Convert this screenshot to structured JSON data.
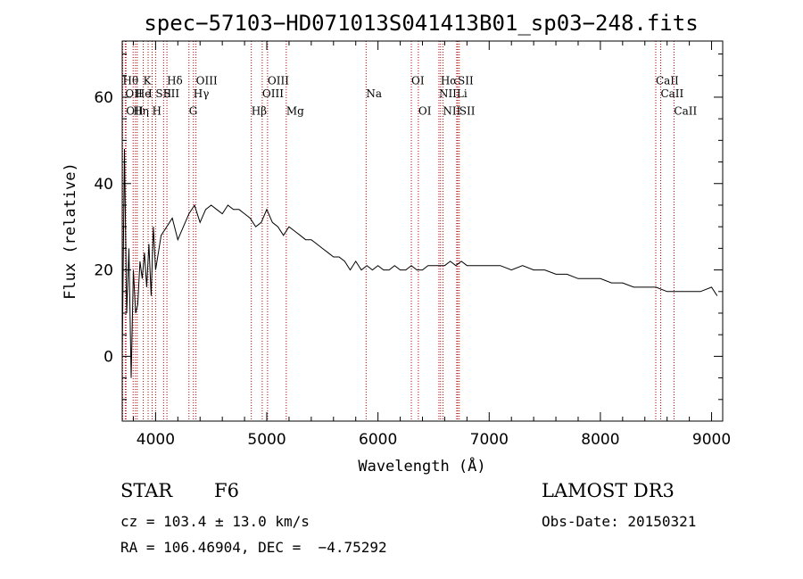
{
  "chart_data": {
    "type": "line",
    "title": "spec−57103−HD071013S041413B01_sp03−248.fits",
    "xlabel": "Wavelength (Å)",
    "ylabel": "Flux (relative)",
    "xlim": [
      3700,
      9100
    ],
    "ylim": [
      -15,
      73
    ],
    "x_ticks": [
      4000,
      5000,
      6000,
      7000,
      8000,
      9000
    ],
    "y_ticks": [
      0,
      20,
      40,
      60
    ],
    "series": [
      {
        "name": "spectrum",
        "x": [
          3700,
          3720,
          3740,
          3760,
          3780,
          3800,
          3820,
          3840,
          3860,
          3880,
          3900,
          3920,
          3940,
          3960,
          3980,
          4000,
          4050,
          4100,
          4150,
          4200,
          4250,
          4300,
          4350,
          4400,
          4450,
          4500,
          4550,
          4600,
          4650,
          4700,
          4750,
          4800,
          4850,
          4900,
          4950,
          5000,
          5050,
          5100,
          5150,
          5200,
          5250,
          5300,
          5350,
          5400,
          5450,
          5500,
          5550,
          5600,
          5650,
          5700,
          5750,
          5800,
          5850,
          5900,
          5950,
          6000,
          6050,
          6100,
          6150,
          6200,
          6250,
          6300,
          6350,
          6400,
          6450,
          6500,
          6550,
          6600,
          6650,
          6700,
          6750,
          6800,
          6850,
          6900,
          6950,
          7000,
          7100,
          7200,
          7300,
          7400,
          7500,
          7600,
          7700,
          7800,
          7900,
          8000,
          8100,
          8200,
          8300,
          8400,
          8500,
          8600,
          8700,
          8800,
          8900,
          9000,
          9050
        ],
        "y": [
          0,
          48,
          10,
          25,
          -5,
          20,
          10,
          12,
          22,
          18,
          24,
          16,
          26,
          14,
          30,
          20,
          28,
          30,
          32,
          27,
          30,
          33,
          35,
          31,
          34,
          35,
          34,
          33,
          35,
          34,
          34,
          33,
          32,
          30,
          31,
          34,
          31,
          30,
          28,
          30,
          29,
          28,
          27,
          27,
          26,
          25,
          24,
          23,
          23,
          22,
          20,
          22,
          20,
          21,
          20,
          21,
          20,
          20,
          21,
          20,
          20,
          21,
          20,
          20,
          21,
          21,
          21,
          21,
          22,
          21,
          22,
          21,
          21,
          21,
          21,
          21,
          21,
          20,
          21,
          20,
          20,
          19,
          19,
          18,
          18,
          18,
          17,
          17,
          16,
          16,
          16,
          15,
          15,
          15,
          15,
          16,
          14
        ]
      }
    ],
    "annotations": [
      {
        "x": 3704,
        "y": 63,
        "text": "Hθ"
      },
      {
        "x": 3727,
        "y": 60,
        "text": "OII"
      },
      {
        "x": 3734,
        "y": 56,
        "text": "OII"
      },
      {
        "x": 3798,
        "y": 56,
        "text": "Hη"
      },
      {
        "x": 3819,
        "y": 60,
        "text": "He"
      },
      {
        "x": 3889,
        "y": 63,
        "text": "K"
      },
      {
        "x": 3933,
        "y": 60,
        "text": "I"
      },
      {
        "x": 3969,
        "y": 56,
        "text": "H"
      },
      {
        "x": 4000,
        "y": 60,
        "text": "SII"
      },
      {
        "x": 4102,
        "y": 63,
        "text": "Hδ"
      },
      {
        "x": 4072,
        "y": 60,
        "text": "SII"
      },
      {
        "x": 4300,
        "y": 56,
        "text": "G"
      },
      {
        "x": 4340,
        "y": 60,
        "text": "Hγ"
      },
      {
        "x": 4363,
        "y": 63,
        "text": "OIII"
      },
      {
        "x": 4861,
        "y": 56,
        "text": "Hβ"
      },
      {
        "x": 4959,
        "y": 60,
        "text": "OIII"
      },
      {
        "x": 5007,
        "y": 63,
        "text": "OIII"
      },
      {
        "x": 5175,
        "y": 56,
        "text": "Mg"
      },
      {
        "x": 5893,
        "y": 60,
        "text": "Na"
      },
      {
        "x": 6300,
        "y": 63,
        "text": "OI"
      },
      {
        "x": 6363,
        "y": 56,
        "text": "OI"
      },
      {
        "x": 6548,
        "y": 60,
        "text": "NII"
      },
      {
        "x": 6563,
        "y": 63,
        "text": "Hα"
      },
      {
        "x": 6584,
        "y": 56,
        "text": "NII"
      },
      {
        "x": 6708,
        "y": 60,
        "text": "Li"
      },
      {
        "x": 6717,
        "y": 63,
        "text": "SII"
      },
      {
        "x": 6731,
        "y": 56,
        "text": "SII"
      },
      {
        "x": 8498,
        "y": 63,
        "text": "CaII"
      },
      {
        "x": 8542,
        "y": 60,
        "text": "CaII"
      },
      {
        "x": 8662,
        "y": 56,
        "text": "CaII"
      }
    ],
    "line_markers": [
      3704,
      3727,
      3734,
      3798,
      3819,
      3835,
      3889,
      3933,
      3969,
      4000,
      4072,
      4102,
      4300,
      4340,
      4363,
      4861,
      4959,
      5007,
      5175,
      5893,
      6300,
      6363,
      6548,
      6563,
      6584,
      6708,
      6717,
      6731,
      8498,
      8542,
      8662
    ]
  },
  "info": {
    "object_type": "STAR",
    "subclass": "F6",
    "survey": "LAMOST DR3",
    "cz": "cz = 103.4 ± 13.0 km/s",
    "obs_date": "Obs-Date: 20150321",
    "radec": "RA = 106.46904, DEC =  −4.75292"
  }
}
